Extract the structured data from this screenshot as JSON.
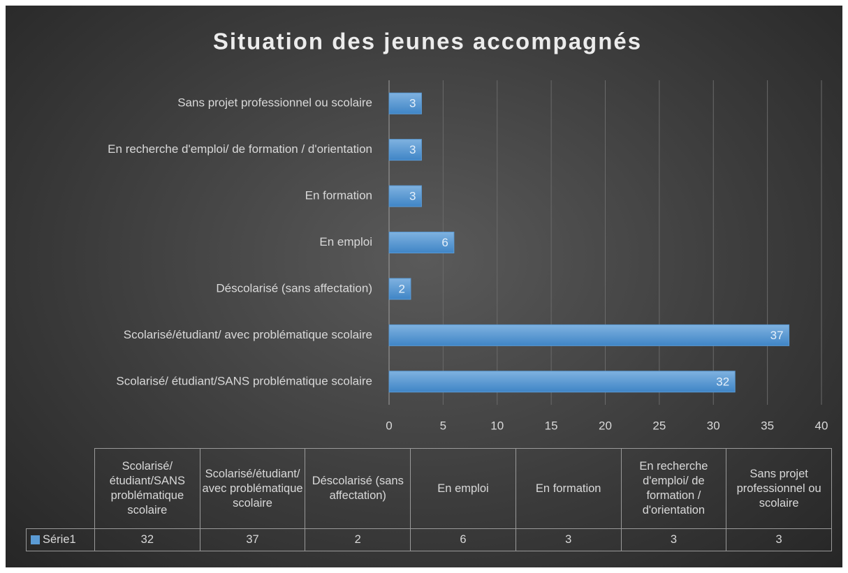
{
  "chart_data": {
    "type": "bar",
    "orientation": "horizontal",
    "title": "Situation des jeunes accompagnés",
    "categories": [
      "Scolarisé/ étudiant/SANS problématique scolaire",
      "Scolarisé/étudiant/ avec problématique scolaire",
      "Déscolarisé (sans affectation)",
      "En emploi",
      "En formation",
      "En recherche d'emploi/ de formation / d'orientation",
      "Sans projet professionnel ou scolaire"
    ],
    "series": [
      {
        "name": "Série1",
        "color": "#5b9bd5",
        "values": [
          32,
          37,
          2,
          6,
          3,
          3,
          3
        ]
      }
    ],
    "xlim": [
      0,
      40
    ],
    "xticks": [
      0,
      5,
      10,
      15,
      20,
      25,
      30,
      35,
      40
    ],
    "grid": true,
    "data_table": true
  }
}
